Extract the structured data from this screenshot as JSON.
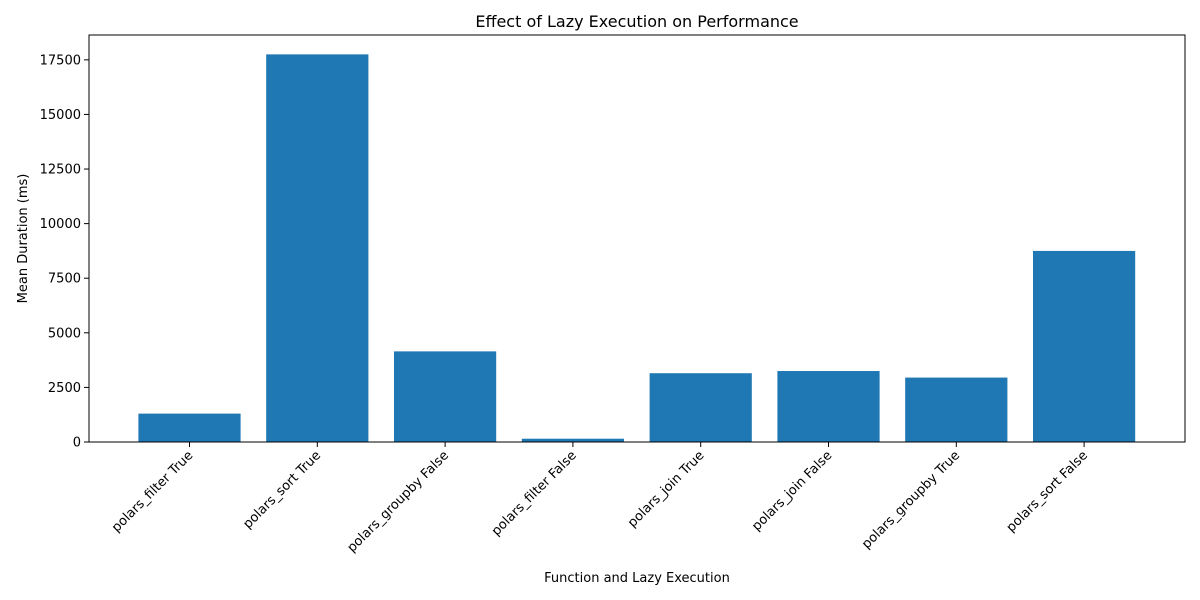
{
  "chart_data": {
    "type": "bar",
    "title": "Effect of Lazy Execution on Performance",
    "xlabel": "Function and Lazy Execution",
    "ylabel": "Mean Duration (ms)",
    "categories": [
      "polars_filter True",
      "polars_sort True",
      "polars_groupby False",
      "polars_filter False",
      "polars_join True",
      "polars_join False",
      "polars_groupby True",
      "polars_sort False"
    ],
    "values": [
      1300,
      17750,
      4150,
      150,
      3150,
      3250,
      2950,
      8750
    ],
    "ylim": [
      0,
      18637.5
    ],
    "yticks": [
      0,
      2500,
      5000,
      7500,
      10000,
      12500,
      15000,
      17500
    ],
    "grid": false,
    "legend": "none",
    "bar_color": "#1f77b4"
  }
}
